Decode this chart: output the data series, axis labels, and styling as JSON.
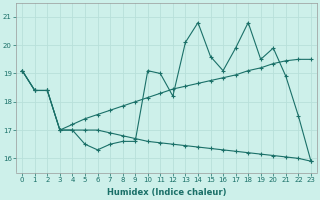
{
  "xlabel": "Humidex (Indice chaleur)",
  "bg_color": "#cdf0ea",
  "grid_color": "#b8e0da",
  "line_color": "#1a7068",
  "x_values": [
    0,
    1,
    2,
    3,
    4,
    5,
    6,
    7,
    8,
    9,
    10,
    11,
    12,
    13,
    14,
    15,
    16,
    17,
    18,
    19,
    20,
    21,
    22,
    23
  ],
  "y_main": [
    19.1,
    18.4,
    18.4,
    17.0,
    17.0,
    16.5,
    16.3,
    16.5,
    16.6,
    16.6,
    19.1,
    19.0,
    18.2,
    20.1,
    20.8,
    19.6,
    19.1,
    19.9,
    20.8,
    19.5,
    19.9,
    18.9,
    17.5,
    15.9
  ],
  "y_upper": [
    19.1,
    18.4,
    18.4,
    17.0,
    17.2,
    17.4,
    17.55,
    17.7,
    17.85,
    18.0,
    18.15,
    18.3,
    18.45,
    18.55,
    18.65,
    18.75,
    18.85,
    18.95,
    19.1,
    19.2,
    19.35,
    19.45,
    19.5,
    19.5
  ],
  "y_lower": [
    19.1,
    18.4,
    18.4,
    17.0,
    17.0,
    17.0,
    17.0,
    16.9,
    16.8,
    16.7,
    16.6,
    16.55,
    16.5,
    16.45,
    16.4,
    16.35,
    16.3,
    16.25,
    16.2,
    16.15,
    16.1,
    16.05,
    16.0,
    15.9
  ],
  "ylim": [
    15.5,
    21.5
  ],
  "yticks": [
    16,
    17,
    18,
    19,
    20,
    21
  ],
  "xlim": [
    -0.5,
    23.5
  ],
  "xticks": [
    0,
    1,
    2,
    3,
    4,
    5,
    6,
    7,
    8,
    9,
    10,
    11,
    12,
    13,
    14,
    15,
    16,
    17,
    18,
    19,
    20,
    21,
    22,
    23
  ],
  "tick_fontsize": 5.0,
  "xlabel_fontsize": 6.0,
  "linewidth": 0.8,
  "markersize": 1.8
}
